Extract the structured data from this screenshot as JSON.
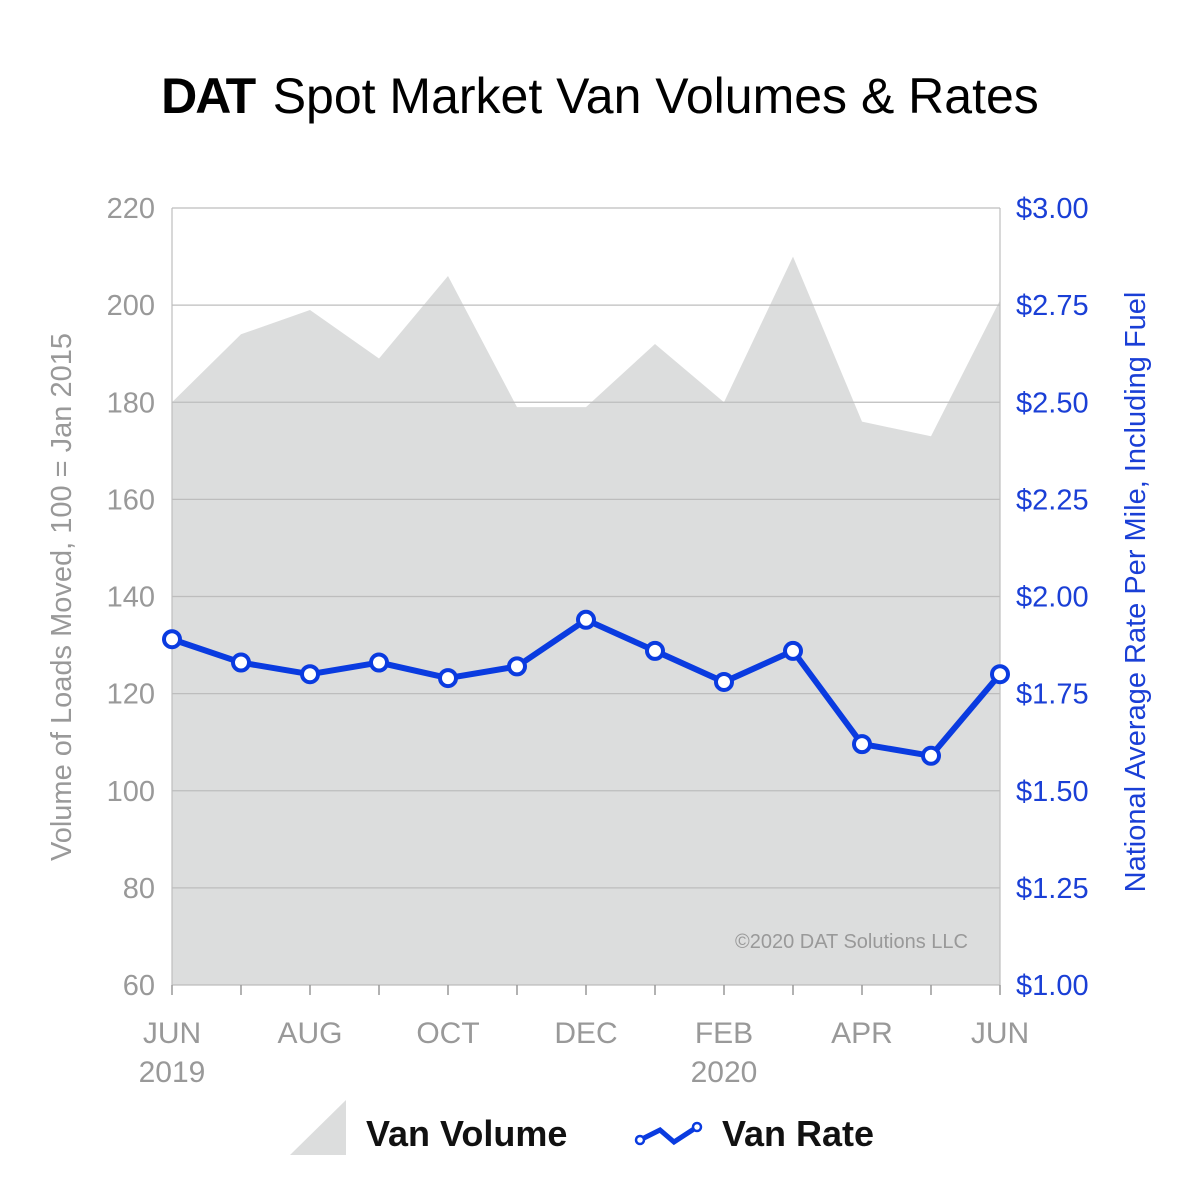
{
  "title": {
    "brand": "DAT",
    "text": "Spot Market Van Volumes & Rates"
  },
  "copyright": "©2020 DAT Solutions LLC",
  "colors": {
    "volume_fill": "#dcdddd",
    "rate_line": "#0a3be0",
    "grid": "#bdbdbd",
    "left_axis_text": "#999999",
    "right_axis_text": "#1a3fd6"
  },
  "chart_data": {
    "type": "area+line",
    "categories": [
      "JUN 2019",
      "JUL 2019",
      "AUG 2019",
      "SEP 2019",
      "OCT 2019",
      "NOV 2019",
      "DEC 2019",
      "JAN 2020",
      "FEB 2020",
      "MAR 2020",
      "APR 2020",
      "MAY 2020",
      "JUN 2020"
    ],
    "x_tick_labels": [
      {
        "index": 0,
        "line1": "JUN",
        "line2": "2019"
      },
      {
        "index": 2,
        "line1": "AUG",
        "line2": ""
      },
      {
        "index": 4,
        "line1": "OCT",
        "line2": ""
      },
      {
        "index": 6,
        "line1": "DEC",
        "line2": ""
      },
      {
        "index": 8,
        "line1": "FEB",
        "line2": "2020"
      },
      {
        "index": 10,
        "line1": "APR",
        "line2": ""
      },
      {
        "index": 12,
        "line1": "JUN",
        "line2": ""
      }
    ],
    "series": [
      {
        "name": "Van Volume",
        "type": "area",
        "axis": "left",
        "values": [
          180,
          194,
          199,
          189,
          206,
          179,
          179,
          192,
          180,
          210,
          176,
          173,
          201
        ]
      },
      {
        "name": "Van Rate",
        "type": "line",
        "axis": "right",
        "values": [
          1.89,
          1.83,
          1.8,
          1.83,
          1.79,
          1.82,
          1.94,
          1.86,
          1.78,
          1.86,
          1.62,
          1.59,
          1.8
        ]
      }
    ],
    "left_axis": {
      "label": "Volume of Loads Moved, 100 = Jan 2015",
      "range": [
        60,
        220
      ],
      "ticks": [
        "60",
        "80",
        "100",
        "120",
        "140",
        "160",
        "180",
        "200",
        "220"
      ]
    },
    "right_axis": {
      "label": "National Average Rate Per Mile, Including Fuel",
      "range": [
        1.0,
        3.0
      ],
      "ticks": [
        "$1.00",
        "$1.25",
        "$1.50",
        "$1.75",
        "$2.00",
        "$2.25",
        "$2.50",
        "$2.75",
        "$3.00"
      ]
    },
    "grid": true,
    "legend": {
      "placement": "bottom",
      "items": [
        "Van Volume",
        "Van Rate"
      ]
    }
  }
}
